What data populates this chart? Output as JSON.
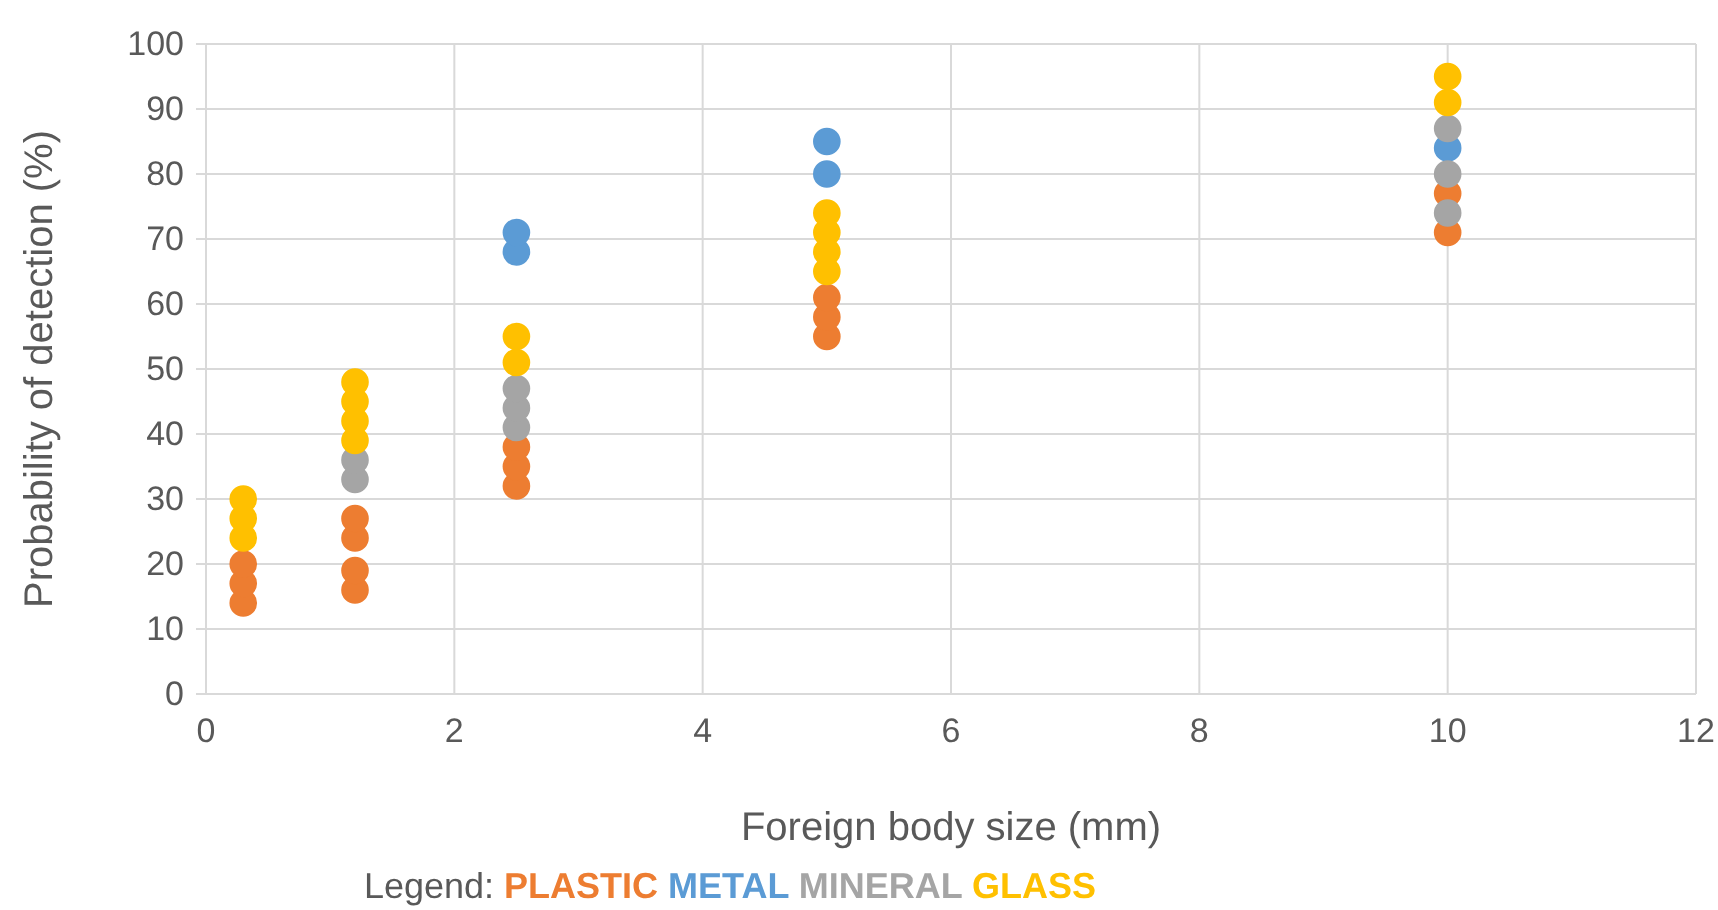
{
  "chart_data": {
    "type": "scatter",
    "xlabel": "Foreign body size (mm)",
    "ylabel": "Probability of detection (%)",
    "legend_title": "Legend:",
    "legend": "bottom",
    "grid": true,
    "marker": "circle",
    "xlim": [
      0,
      12
    ],
    "xticks": [
      0,
      2,
      4,
      6,
      8,
      10,
      12
    ],
    "ylim": [
      0,
      100
    ],
    "yticks": [
      0,
      10,
      20,
      30,
      40,
      50,
      60,
      70,
      80,
      90,
      100
    ],
    "series": [
      {
        "name": "PLASTIC",
        "color": "#ed7d31",
        "x": [
          0.3,
          0.3,
          0.3,
          1.2,
          1.2,
          1.2,
          1.2,
          2.5,
          2.5,
          2.5,
          5,
          5,
          5,
          10,
          10
        ],
        "values": [
          14,
          17,
          20,
          16,
          19,
          24,
          27,
          32,
          35,
          38,
          55,
          58,
          61,
          71,
          77
        ]
      },
      {
        "name": "METAL",
        "color": "#5b9bd5",
        "x": [
          2.5,
          2.5,
          5,
          5,
          10
        ],
        "values": [
          68,
          71,
          80,
          85,
          84
        ]
      },
      {
        "name": "MINERAL",
        "color": "#a5a5a5",
        "x": [
          1.2,
          1.2,
          2.5,
          2.5,
          2.5,
          10,
          10,
          10
        ],
        "values": [
          33,
          36,
          41,
          44,
          47,
          74,
          80,
          87
        ]
      },
      {
        "name": "GLASS",
        "color": "#ffc000",
        "x": [
          0.3,
          0.3,
          0.3,
          1.2,
          1.2,
          1.2,
          1.2,
          2.5,
          2.5,
          5,
          5,
          5,
          5,
          10,
          10
        ],
        "values": [
          24,
          27,
          30,
          39,
          42,
          45,
          48,
          51,
          55,
          65,
          68,
          71,
          74,
          91,
          95
        ]
      }
    ]
  }
}
